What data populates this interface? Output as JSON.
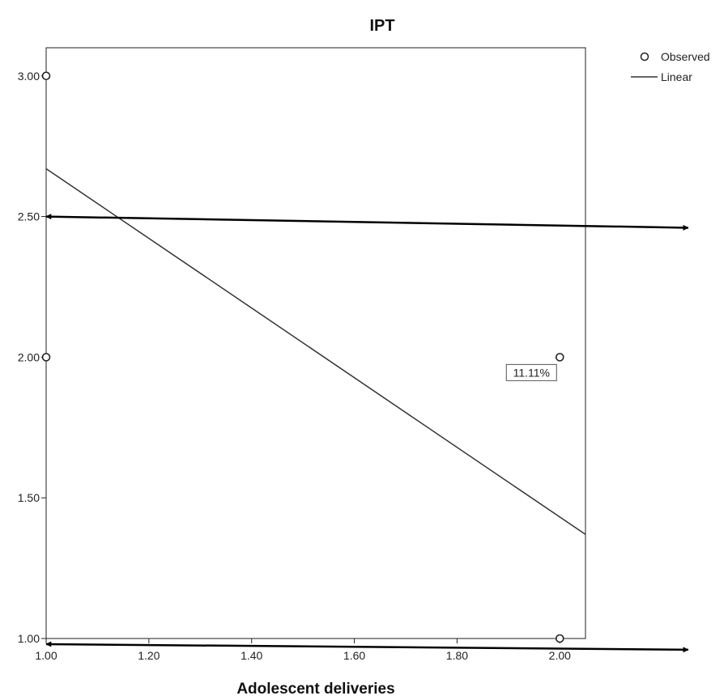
{
  "chart_data": {
    "type": "scatter",
    "title": "IPT",
    "xlabel": "Adolescent deliveries",
    "ylabel": "",
    "xlim": [
      1.0,
      2.05
    ],
    "ylim": [
      1.0,
      3.1
    ],
    "grid": false,
    "legend_position": "top-right",
    "x_ticks": [
      {
        "value": 1.0,
        "label": "1.00"
      },
      {
        "value": 1.2,
        "label": "1.20"
      },
      {
        "value": 1.4,
        "label": "1.40"
      },
      {
        "value": 1.6,
        "label": "1.60"
      },
      {
        "value": 1.8,
        "label": "1.80"
      },
      {
        "value": 2.0,
        "label": "2.00"
      }
    ],
    "y_ticks": [
      {
        "value": 1.0,
        "label": "1.00"
      },
      {
        "value": 1.5,
        "label": "1.50"
      },
      {
        "value": 2.0,
        "label": "2.00"
      },
      {
        "value": 2.5,
        "label": "2.50"
      },
      {
        "value": 3.0,
        "label": "3.00"
      }
    ],
    "series": [
      {
        "name": "Observed",
        "kind": "scatter",
        "points": [
          {
            "x": 1.0,
            "y": 3.0
          },
          {
            "x": 1.0,
            "y": 2.0
          },
          {
            "x": 2.0,
            "y": 2.0
          },
          {
            "x": 2.0,
            "y": 1.0
          }
        ]
      },
      {
        "name": "Linear",
        "kind": "line",
        "points": [
          {
            "x": 1.0,
            "y": 2.67
          },
          {
            "x": 2.05,
            "y": 1.37
          }
        ]
      }
    ],
    "annotations": [
      {
        "text": "11.11%",
        "x": 2.0,
        "y": 2.0
      }
    ],
    "overlay_arrows": [
      {
        "from": {
          "x": 1.0,
          "y": 2.5
        },
        "to": {
          "x": 2.25,
          "y": 2.46
        },
        "double_headed": true
      },
      {
        "from": {
          "x": 1.0,
          "y": 0.98
        },
        "to": {
          "x": 2.25,
          "y": 0.96
        },
        "double_headed": true
      }
    ],
    "colors": {
      "marker": "#222222",
      "line": "#333333",
      "frame": "#222222",
      "arrow": "#000000"
    }
  }
}
